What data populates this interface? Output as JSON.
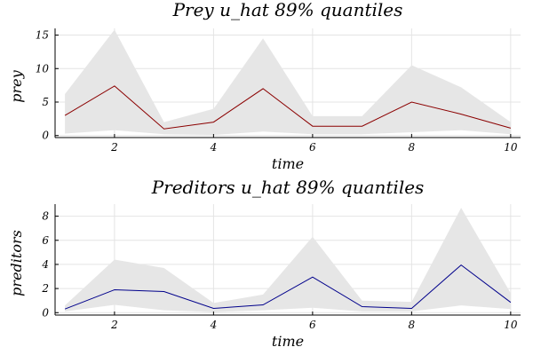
{
  "chart_data": [
    {
      "type": "area",
      "title": "Prey u_hat 89% quantiles",
      "xlabel": "time",
      "ylabel": "prey",
      "xlim": [
        0.8,
        10.2
      ],
      "ylim": [
        -0.3,
        16.0
      ],
      "xticks": [
        2,
        4,
        6,
        8,
        10
      ],
      "yticks": [
        0,
        5,
        10,
        15
      ],
      "grid": true,
      "line_color": "#8b0000",
      "band_color": "#e6e6e6",
      "x": [
        1,
        2,
        3,
        4,
        5,
        6,
        7,
        8,
        9,
        10
      ],
      "series": [
        {
          "role": "median",
          "values": [
            3.0,
            7.4,
            1.0,
            2.0,
            7.0,
            1.4,
            1.4,
            5.0,
            3.2,
            1.1
          ]
        },
        {
          "role": "lower",
          "values": [
            0.3,
            0.8,
            0.2,
            0.1,
            0.6,
            0.2,
            0.2,
            0.5,
            0.8,
            0.2
          ]
        },
        {
          "role": "upper",
          "values": [
            6.2,
            15.8,
            2.0,
            4.0,
            14.5,
            2.9,
            2.9,
            10.5,
            7.2,
            2.0
          ]
        }
      ]
    },
    {
      "type": "area",
      "title": "Preditors u_hat 89% quantiles",
      "xlabel": "time",
      "ylabel": "preditors",
      "xlim": [
        0.8,
        10.2
      ],
      "ylim": [
        -0.2,
        9.0
      ],
      "xticks": [
        2,
        4,
        6,
        8,
        10
      ],
      "yticks": [
        0,
        2,
        4,
        6,
        8
      ],
      "grid": true,
      "line_color": "#00008b",
      "band_color": "#e6e6e6",
      "x": [
        1,
        2,
        3,
        4,
        5,
        6,
        7,
        8,
        9,
        10
      ],
      "series": [
        {
          "role": "median",
          "values": [
            0.3,
            1.9,
            1.75,
            0.35,
            0.65,
            2.95,
            0.5,
            0.35,
            3.95,
            0.85
          ]
        },
        {
          "role": "lower",
          "values": [
            0.1,
            0.65,
            0.2,
            0.05,
            0.2,
            0.4,
            0.1,
            0.1,
            0.6,
            0.3
          ]
        },
        {
          "role": "upper",
          "values": [
            0.6,
            4.4,
            3.7,
            0.8,
            1.5,
            6.3,
            1.0,
            0.9,
            8.7,
            1.6
          ]
        }
      ]
    }
  ]
}
